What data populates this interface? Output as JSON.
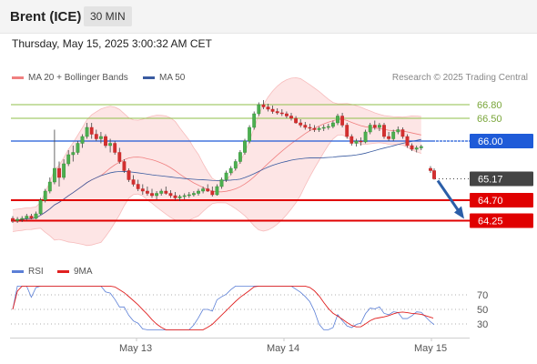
{
  "header": {
    "title": "Brent (ICE)",
    "timeframe": "30 MIN"
  },
  "datetime": "Thursday, May 15, 2025 3:00:32 AM CET",
  "legend": {
    "ma20": {
      "label": "MA 20 + Bollinger Bands",
      "color": "#f08080"
    },
    "ma50": {
      "label": "MA 50",
      "color": "#3a5ba0"
    },
    "rsi": {
      "label": "RSI",
      "color": "#5b7fd6"
    },
    "ma9": {
      "label": "9MA",
      "color": "#e02020"
    }
  },
  "credit": "Research © 2025 Trading Central",
  "x_labels": [
    "May 13",
    "May 14",
    "May 15"
  ],
  "chart_data": {
    "type": "candlestick",
    "price": {
      "ylim": [
        63.4,
        67.2
      ],
      "levels": [
        {
          "value": 66.8,
          "label": "66.80",
          "kind": "resistance",
          "color": "#8fbf4a"
        },
        {
          "value": 66.5,
          "label": "66.50",
          "kind": "resistance",
          "color": "#8fbf4a"
        },
        {
          "value": 66.0,
          "label": "66.00",
          "kind": "pivot",
          "color": "#1f5bd8"
        },
        {
          "value": 65.17,
          "label": "65.17",
          "kind": "last",
          "color": "#222222"
        },
        {
          "value": 64.7,
          "label": "64.70",
          "kind": "support",
          "color": "#e00000"
        },
        {
          "value": 64.25,
          "label": "64.25",
          "kind": "support",
          "color": "#e00000"
        }
      ],
      "ohlc": [
        [
          64.3,
          64.35,
          64.2,
          64.25
        ],
        [
          64.25,
          64.33,
          64.2,
          64.28
        ],
        [
          64.28,
          64.35,
          64.22,
          64.3
        ],
        [
          64.3,
          64.4,
          64.25,
          64.35
        ],
        [
          64.35,
          64.4,
          64.28,
          64.3
        ],
        [
          64.3,
          64.45,
          64.28,
          64.4
        ],
        [
          64.4,
          64.75,
          64.38,
          64.7
        ],
        [
          64.7,
          64.95,
          64.65,
          64.9
        ],
        [
          64.9,
          65.2,
          64.85,
          65.1
        ],
        [
          65.1,
          66.25,
          65.05,
          65.4
        ],
        [
          65.4,
          65.55,
          65.0,
          65.2
        ],
        [
          65.2,
          65.6,
          65.15,
          65.5
        ],
        [
          65.5,
          65.8,
          65.45,
          65.7
        ],
        [
          65.7,
          65.9,
          65.55,
          65.75
        ],
        [
          65.75,
          66.0,
          65.7,
          65.95
        ],
        [
          65.95,
          66.15,
          65.85,
          66.1
        ],
        [
          66.1,
          66.4,
          66.05,
          66.3
        ],
        [
          66.3,
          66.4,
          66.05,
          66.15
        ],
        [
          66.15,
          66.25,
          66.0,
          66.05
        ],
        [
          66.05,
          66.2,
          65.95,
          66.1
        ],
        [
          66.1,
          66.15,
          65.85,
          65.9
        ],
        [
          65.9,
          66.05,
          65.75,
          65.95
        ],
        [
          65.95,
          66.0,
          65.7,
          65.75
        ],
        [
          65.75,
          65.85,
          65.5,
          65.55
        ],
        [
          65.55,
          65.6,
          65.3,
          65.35
        ],
        [
          65.35,
          65.4,
          65.1,
          65.15
        ],
        [
          65.15,
          65.25,
          65.0,
          65.05
        ],
        [
          65.05,
          65.15,
          64.9,
          64.95
        ],
        [
          64.95,
          65.05,
          64.82,
          64.9
        ],
        [
          64.9,
          65.0,
          64.8,
          64.85
        ],
        [
          64.85,
          64.95,
          64.75,
          64.8
        ],
        [
          64.8,
          64.9,
          64.72,
          64.85
        ],
        [
          64.85,
          64.95,
          64.8,
          64.9
        ],
        [
          64.9,
          65.0,
          64.82,
          64.85
        ],
        [
          64.85,
          64.92,
          64.75,
          64.8
        ],
        [
          64.8,
          64.88,
          64.7,
          64.75
        ],
        [
          64.75,
          64.82,
          64.68,
          64.78
        ],
        [
          64.78,
          64.85,
          64.72,
          64.8
        ],
        [
          64.8,
          64.88,
          64.75,
          64.82
        ],
        [
          64.82,
          64.9,
          64.78,
          64.85
        ],
        [
          64.85,
          64.95,
          64.8,
          64.9
        ],
        [
          64.9,
          65.0,
          64.85,
          64.95
        ],
        [
          64.95,
          65.05,
          64.88,
          64.9
        ],
        [
          64.9,
          65.0,
          64.78,
          64.82
        ],
        [
          64.82,
          65.05,
          64.8,
          65.0
        ],
        [
          65.0,
          65.2,
          64.95,
          65.15
        ],
        [
          65.15,
          65.35,
          65.1,
          65.3
        ],
        [
          65.3,
          65.45,
          65.25,
          65.4
        ],
        [
          65.4,
          65.6,
          65.35,
          65.55
        ],
        [
          65.55,
          65.8,
          65.5,
          65.75
        ],
        [
          65.75,
          66.05,
          65.7,
          66.0
        ],
        [
          66.0,
          66.35,
          65.95,
          66.3
        ],
        [
          66.3,
          66.65,
          66.25,
          66.6
        ],
        [
          66.6,
          66.85,
          66.55,
          66.8
        ],
        [
          66.8,
          66.9,
          66.7,
          66.75
        ],
        [
          66.75,
          66.82,
          66.65,
          66.7
        ],
        [
          66.7,
          66.78,
          66.6,
          66.65
        ],
        [
          66.65,
          66.72,
          66.58,
          66.62
        ],
        [
          66.62,
          66.7,
          66.55,
          66.6
        ],
        [
          66.6,
          66.65,
          66.5,
          66.55
        ],
        [
          66.55,
          66.62,
          66.45,
          66.5
        ],
        [
          66.5,
          66.55,
          66.38,
          66.4
        ],
        [
          66.4,
          66.48,
          66.3,
          66.35
        ],
        [
          66.35,
          66.42,
          66.25,
          66.3
        ],
        [
          66.3,
          66.38,
          66.22,
          66.28
        ],
        [
          66.28,
          66.35,
          66.2,
          66.25
        ],
        [
          66.25,
          66.32,
          66.2,
          66.28
        ],
        [
          66.28,
          66.36,
          66.22,
          66.3
        ],
        [
          66.3,
          66.38,
          66.25,
          66.32
        ],
        [
          66.32,
          66.45,
          66.28,
          66.4
        ],
        [
          66.4,
          66.6,
          66.35,
          66.55
        ],
        [
          66.55,
          66.62,
          66.3,
          66.35
        ],
        [
          66.35,
          66.4,
          66.05,
          66.1
        ],
        [
          66.1,
          66.15,
          65.9,
          65.95
        ],
        [
          65.95,
          66.05,
          65.88,
          66.0
        ],
        [
          66.0,
          66.08,
          65.9,
          65.98
        ],
        [
          65.98,
          66.25,
          65.95,
          66.2
        ],
        [
          66.2,
          66.4,
          66.15,
          66.35
        ],
        [
          66.35,
          66.45,
          66.25,
          66.3
        ],
        [
          66.3,
          66.4,
          66.22,
          66.35
        ],
        [
          66.35,
          66.4,
          66.05,
          66.1
        ],
        [
          66.1,
          66.2,
          66.0,
          66.05
        ],
        [
          66.05,
          66.25,
          66.0,
          66.2
        ],
        [
          66.2,
          66.32,
          66.15,
          66.25
        ],
        [
          66.25,
          66.3,
          66.05,
          66.1
        ],
        [
          66.1,
          66.15,
          65.85,
          65.9
        ],
        [
          65.9,
          65.95,
          65.78,
          65.82
        ],
        [
          65.82,
          65.9,
          65.75,
          65.85
        ],
        [
          65.85,
          65.92,
          65.8,
          65.88
        ]
      ],
      "last_bars": [
        [
          65.4,
          65.45,
          65.3,
          65.35
        ],
        [
          65.35,
          65.4,
          65.15,
          65.17
        ]
      ],
      "projection": {
        "from": 65.17,
        "to": 64.25
      }
    },
    "rsi": {
      "levels": [
        70,
        50,
        30
      ],
      "ylim": [
        20,
        85
      ]
    }
  }
}
